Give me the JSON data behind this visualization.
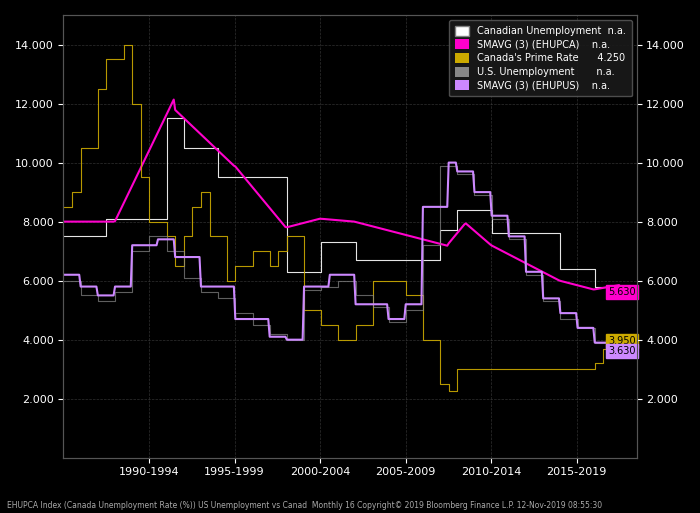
{
  "background_color": "#000000",
  "plot_bg_color": "#000000",
  "grid_color": "#444444",
  "text_color": "#ffffff",
  "colors": {
    "canadian_unemp": "#ffffff",
    "smavg_ehupca": "#ff00cc",
    "prime_rate": "#ccaa00",
    "us_unemp": "#888888",
    "smavg_ehupus": "#cc88ff"
  },
  "xlim": [
    1987.0,
    2020.5
  ],
  "ylim": [
    0.0,
    15.0
  ],
  "yticks": [
    2.0,
    4.0,
    6.0,
    8.0,
    10.0,
    12.0,
    14.0
  ],
  "ytick_labels": [
    "2.000",
    "4.000",
    "6.000",
    "8.000",
    "10.000",
    "12.000",
    "14.000"
  ],
  "xtick_labels": [
    "1990-1994",
    "1995-1999",
    "2000-2004",
    "2005-2009",
    "2010-2014",
    "2015-2019"
  ],
  "xtick_positions": [
    1992,
    1997,
    2002,
    2007,
    2012,
    2017
  ],
  "last_values": {
    "smavg_ehupca": 5.63,
    "prime_rate": 3.95,
    "smavg_ehupus": 3.63
  },
  "footer": "EHUPCA Index (Canada Unemployment Rate (%)) US Unemployment vs Canad  Monthly 16 Copyright© 2019 Bloomberg Finance L.P. 12-Nov-2019 08:55:30"
}
